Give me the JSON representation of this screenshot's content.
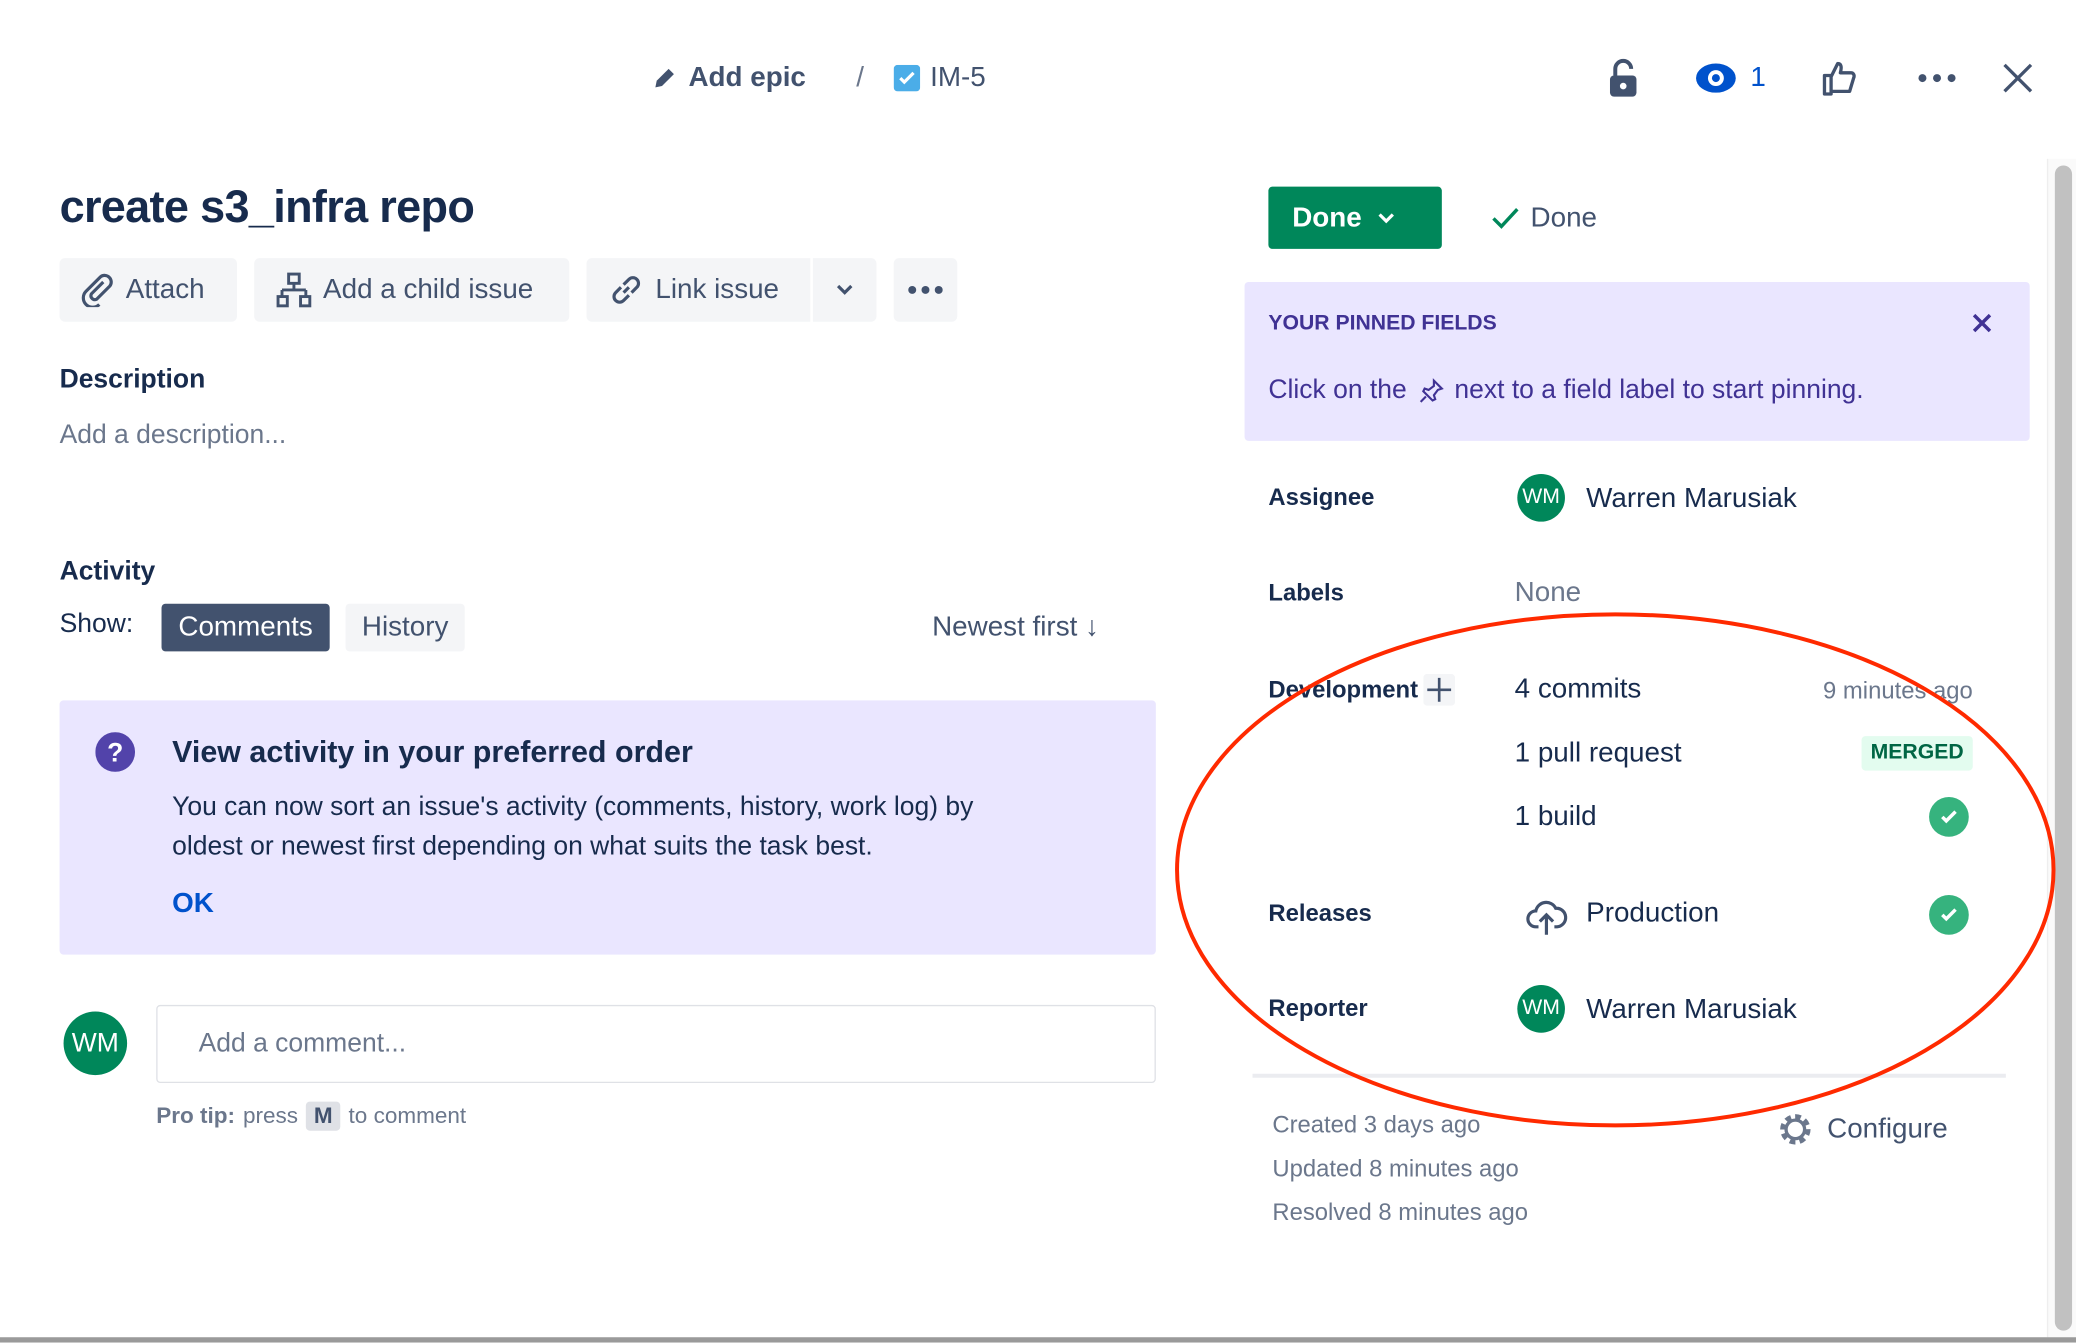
{
  "breadcrumb": {
    "epic": "Add epic",
    "separator": "/",
    "issue_key": "IM-5"
  },
  "header": {
    "watch_count": "1"
  },
  "issue": {
    "title": "create s3_infra repo"
  },
  "toolbar": {
    "attach": "Attach",
    "add_child": "Add a child issue",
    "link_issue": "Link issue"
  },
  "description": {
    "heading": "Description",
    "placeholder": "Add a description..."
  },
  "activity": {
    "heading": "Activity",
    "show_label": "Show:",
    "tabs": [
      "Comments",
      "History"
    ],
    "sort": "Newest first ↓"
  },
  "info": {
    "title": "View activity in your preferred order",
    "line1": "You can now sort an issue's activity (comments, history, work log) by",
    "line2": "oldest or newest first depending on what suits the task best.",
    "ok": "OK"
  },
  "comment": {
    "avatar": "WM",
    "placeholder": "Add a comment...",
    "tip_bold": "Pro tip:",
    "tip_pre": "press",
    "tip_key": "M",
    "tip_post": "to comment"
  },
  "status": {
    "button": "Done",
    "resolution": "Done"
  },
  "pinned": {
    "title": "YOUR PINNED FIELDS",
    "text_pre": "Click on the",
    "text_post": "next to a field label to start pinning."
  },
  "fields": {
    "assignee": {
      "label": "Assignee",
      "avatar": "WM",
      "name": "Warren Marusiak"
    },
    "labels": {
      "label": "Labels",
      "value": "None"
    },
    "development": {
      "label": "Development",
      "commits": "4 commits",
      "commits_time": "9 minutes ago",
      "pull_requests": "1 pull request",
      "pr_status": "MERGED",
      "builds": "1 build"
    },
    "releases": {
      "label": "Releases",
      "value": "Production"
    },
    "reporter": {
      "label": "Reporter",
      "avatar": "WM",
      "name": "Warren Marusiak"
    }
  },
  "dates": {
    "created": "Created 3 days ago",
    "updated": "Updated 8 minutes ago",
    "resolved": "Resolved 8 minutes ago"
  },
  "configure": "Configure",
  "colors": {
    "primary_green": "#00875a",
    "success": "#36b37e",
    "info_bg": "#eae6ff",
    "link": "#0052cc",
    "annotation": "#ff2a00"
  }
}
